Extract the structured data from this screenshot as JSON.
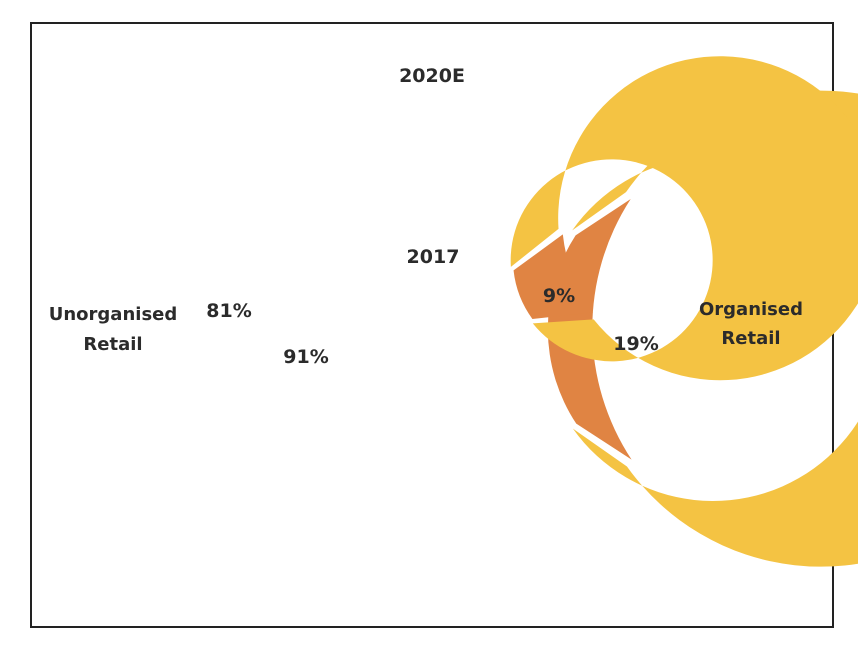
{
  "chart_data": {
    "type": "pie",
    "variant": "nested-donut",
    "rings": [
      {
        "name": "2020E",
        "position": "outer",
        "slices": [
          {
            "label": "Organised Retail",
            "value": 19,
            "display": "19%",
            "color": "#E08443"
          },
          {
            "label": "Unorganised Retail",
            "value": 81,
            "display": "81%",
            "color": "#F4C343"
          }
        ]
      },
      {
        "name": "2017",
        "position": "inner",
        "slices": [
          {
            "label": "Organised Retail",
            "value": 9,
            "display": "9%",
            "color": "#E08443"
          },
          {
            "label": "Unorganised Retail",
            "value": 91,
            "display": "91%",
            "color": "#F4C343"
          }
        ]
      }
    ],
    "category_labels": {
      "unorganised": [
        "Unorganised",
        "Retail"
      ],
      "organised": [
        "Organised",
        "Retail"
      ]
    },
    "legend": "none"
  }
}
